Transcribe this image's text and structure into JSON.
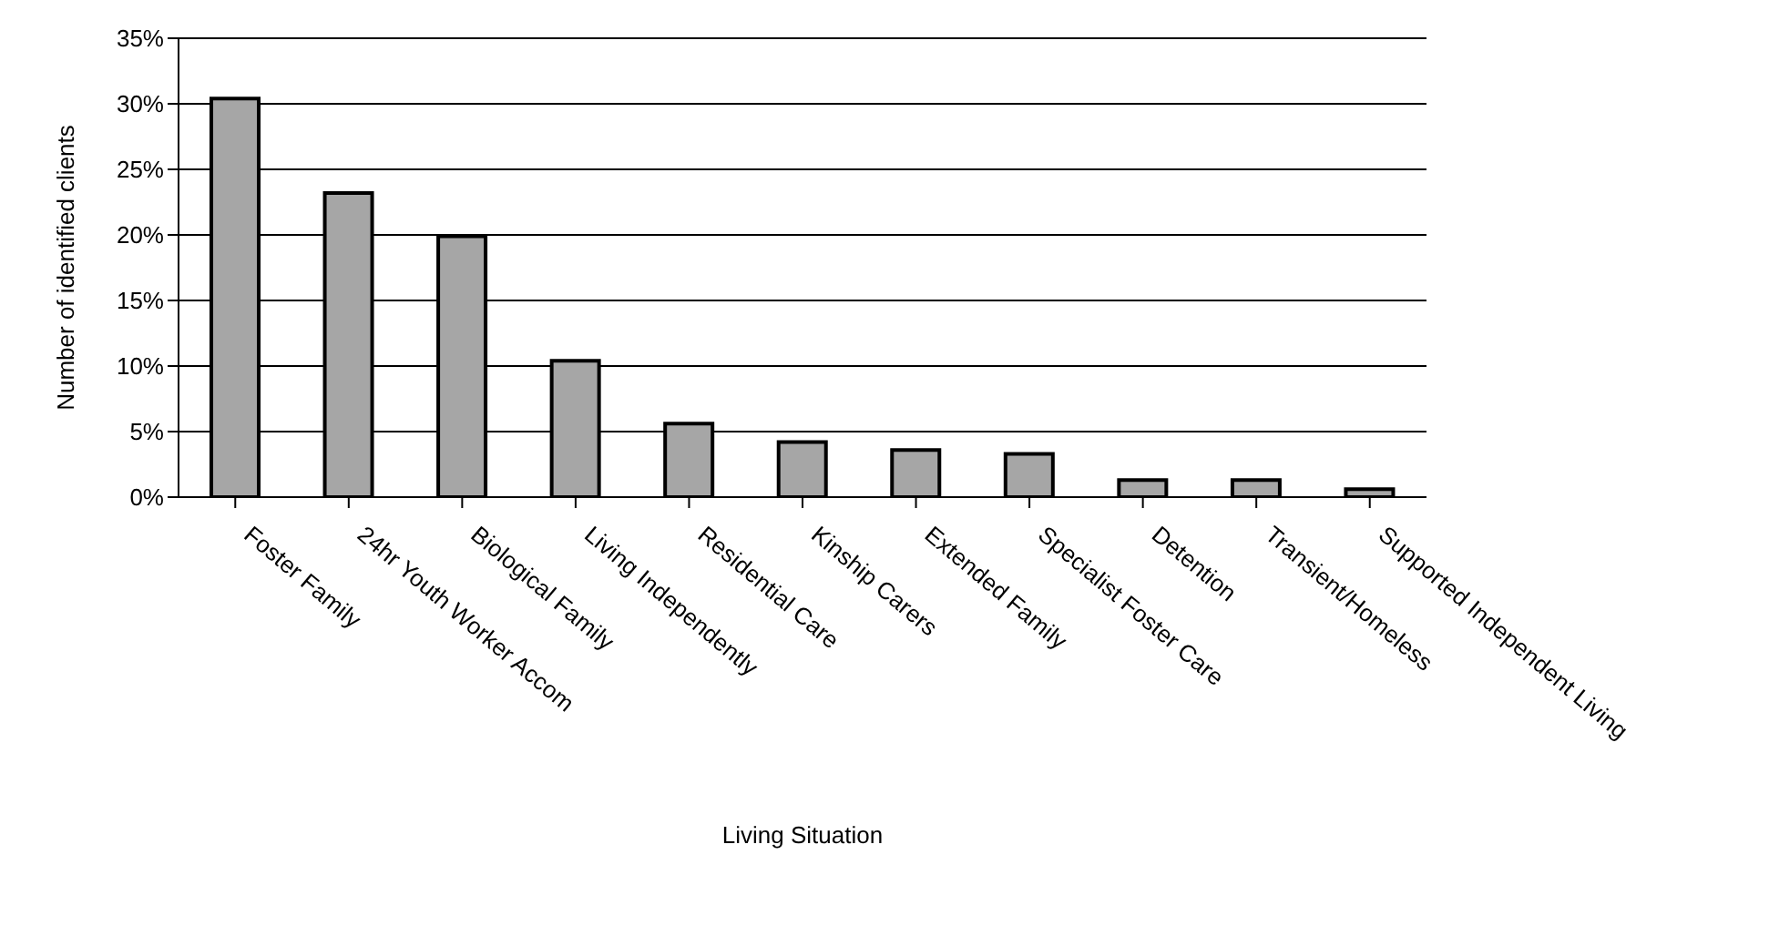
{
  "chart_data": {
    "type": "bar",
    "xlabel": "Living Situation",
    "ylabel": "Number of identified clients",
    "categories": [
      "Foster Family",
      "24hr Youth Worker Accom",
      "Biological Family",
      "Living Independently",
      "Residential Care",
      "Kinship Carers",
      "Extended Family",
      "Specialist Foster Care",
      "Detention",
      "Transient/Homeless",
      "Supported Independent Living"
    ],
    "values": [
      30.4,
      23.2,
      19.9,
      10.4,
      5.6,
      4.2,
      3.6,
      3.3,
      1.3,
      1.3,
      0.6
    ],
    "color": "#a6a6a6",
    "ylim": [
      0,
      35
    ],
    "yticks": [
      {
        "value": 0,
        "label": "0%"
      },
      {
        "value": 5,
        "label": "5%"
      },
      {
        "value": 10,
        "label": "10%"
      },
      {
        "value": 15,
        "label": "15%"
      },
      {
        "value": 20,
        "label": "20%"
      },
      {
        "value": 25,
        "label": "25%"
      },
      {
        "value": 30,
        "label": "30%"
      },
      {
        "value": 35,
        "label": "35%"
      }
    ],
    "grid": "y",
    "legend": false
  }
}
